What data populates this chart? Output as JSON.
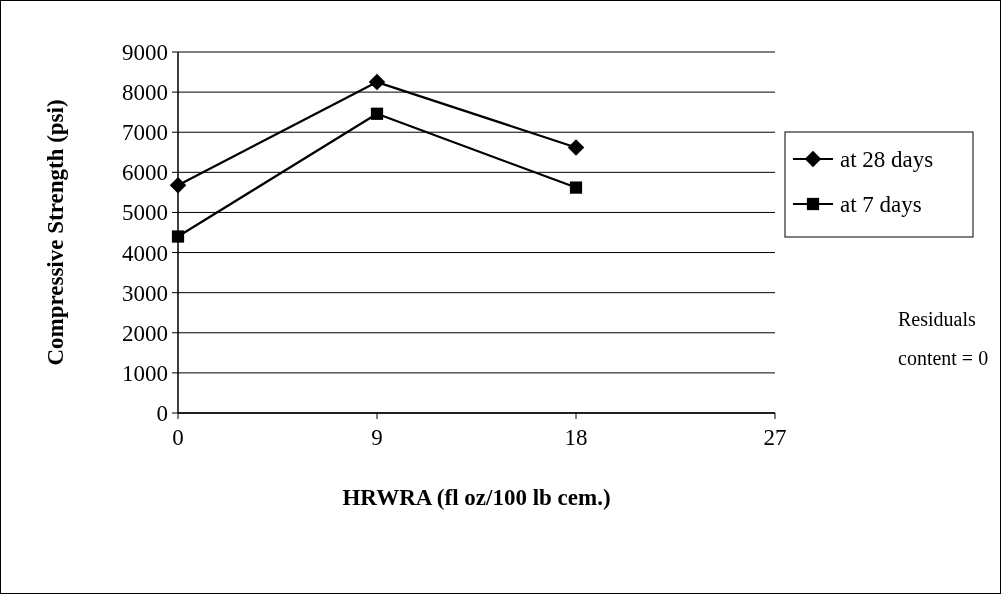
{
  "chart_data": {
    "type": "line",
    "xlabel": "HRWRA (fl oz/100 lb cem.)",
    "ylabel": "Compressive Strength (psi)",
    "x": [
      0,
      9,
      18
    ],
    "xlim": [
      0,
      27
    ],
    "xticks": [
      0,
      9,
      18,
      27
    ],
    "ylim": [
      0,
      9000
    ],
    "yticks": [
      0,
      1000,
      2000,
      3000,
      4000,
      5000,
      6000,
      7000,
      8000,
      9000
    ],
    "grid": "y",
    "legend": "right",
    "line_style": "solid",
    "annotations": [
      "Residuals content = 0"
    ],
    "series": [
      {
        "name": "at 28 days",
        "color": "#000000",
        "marker": "diamond",
        "values": [
          5680,
          8250,
          6620
        ]
      },
      {
        "name": "at 7 days",
        "color": "#000000",
        "marker": "square",
        "values": [
          4400,
          7460,
          5620
        ]
      }
    ]
  }
}
